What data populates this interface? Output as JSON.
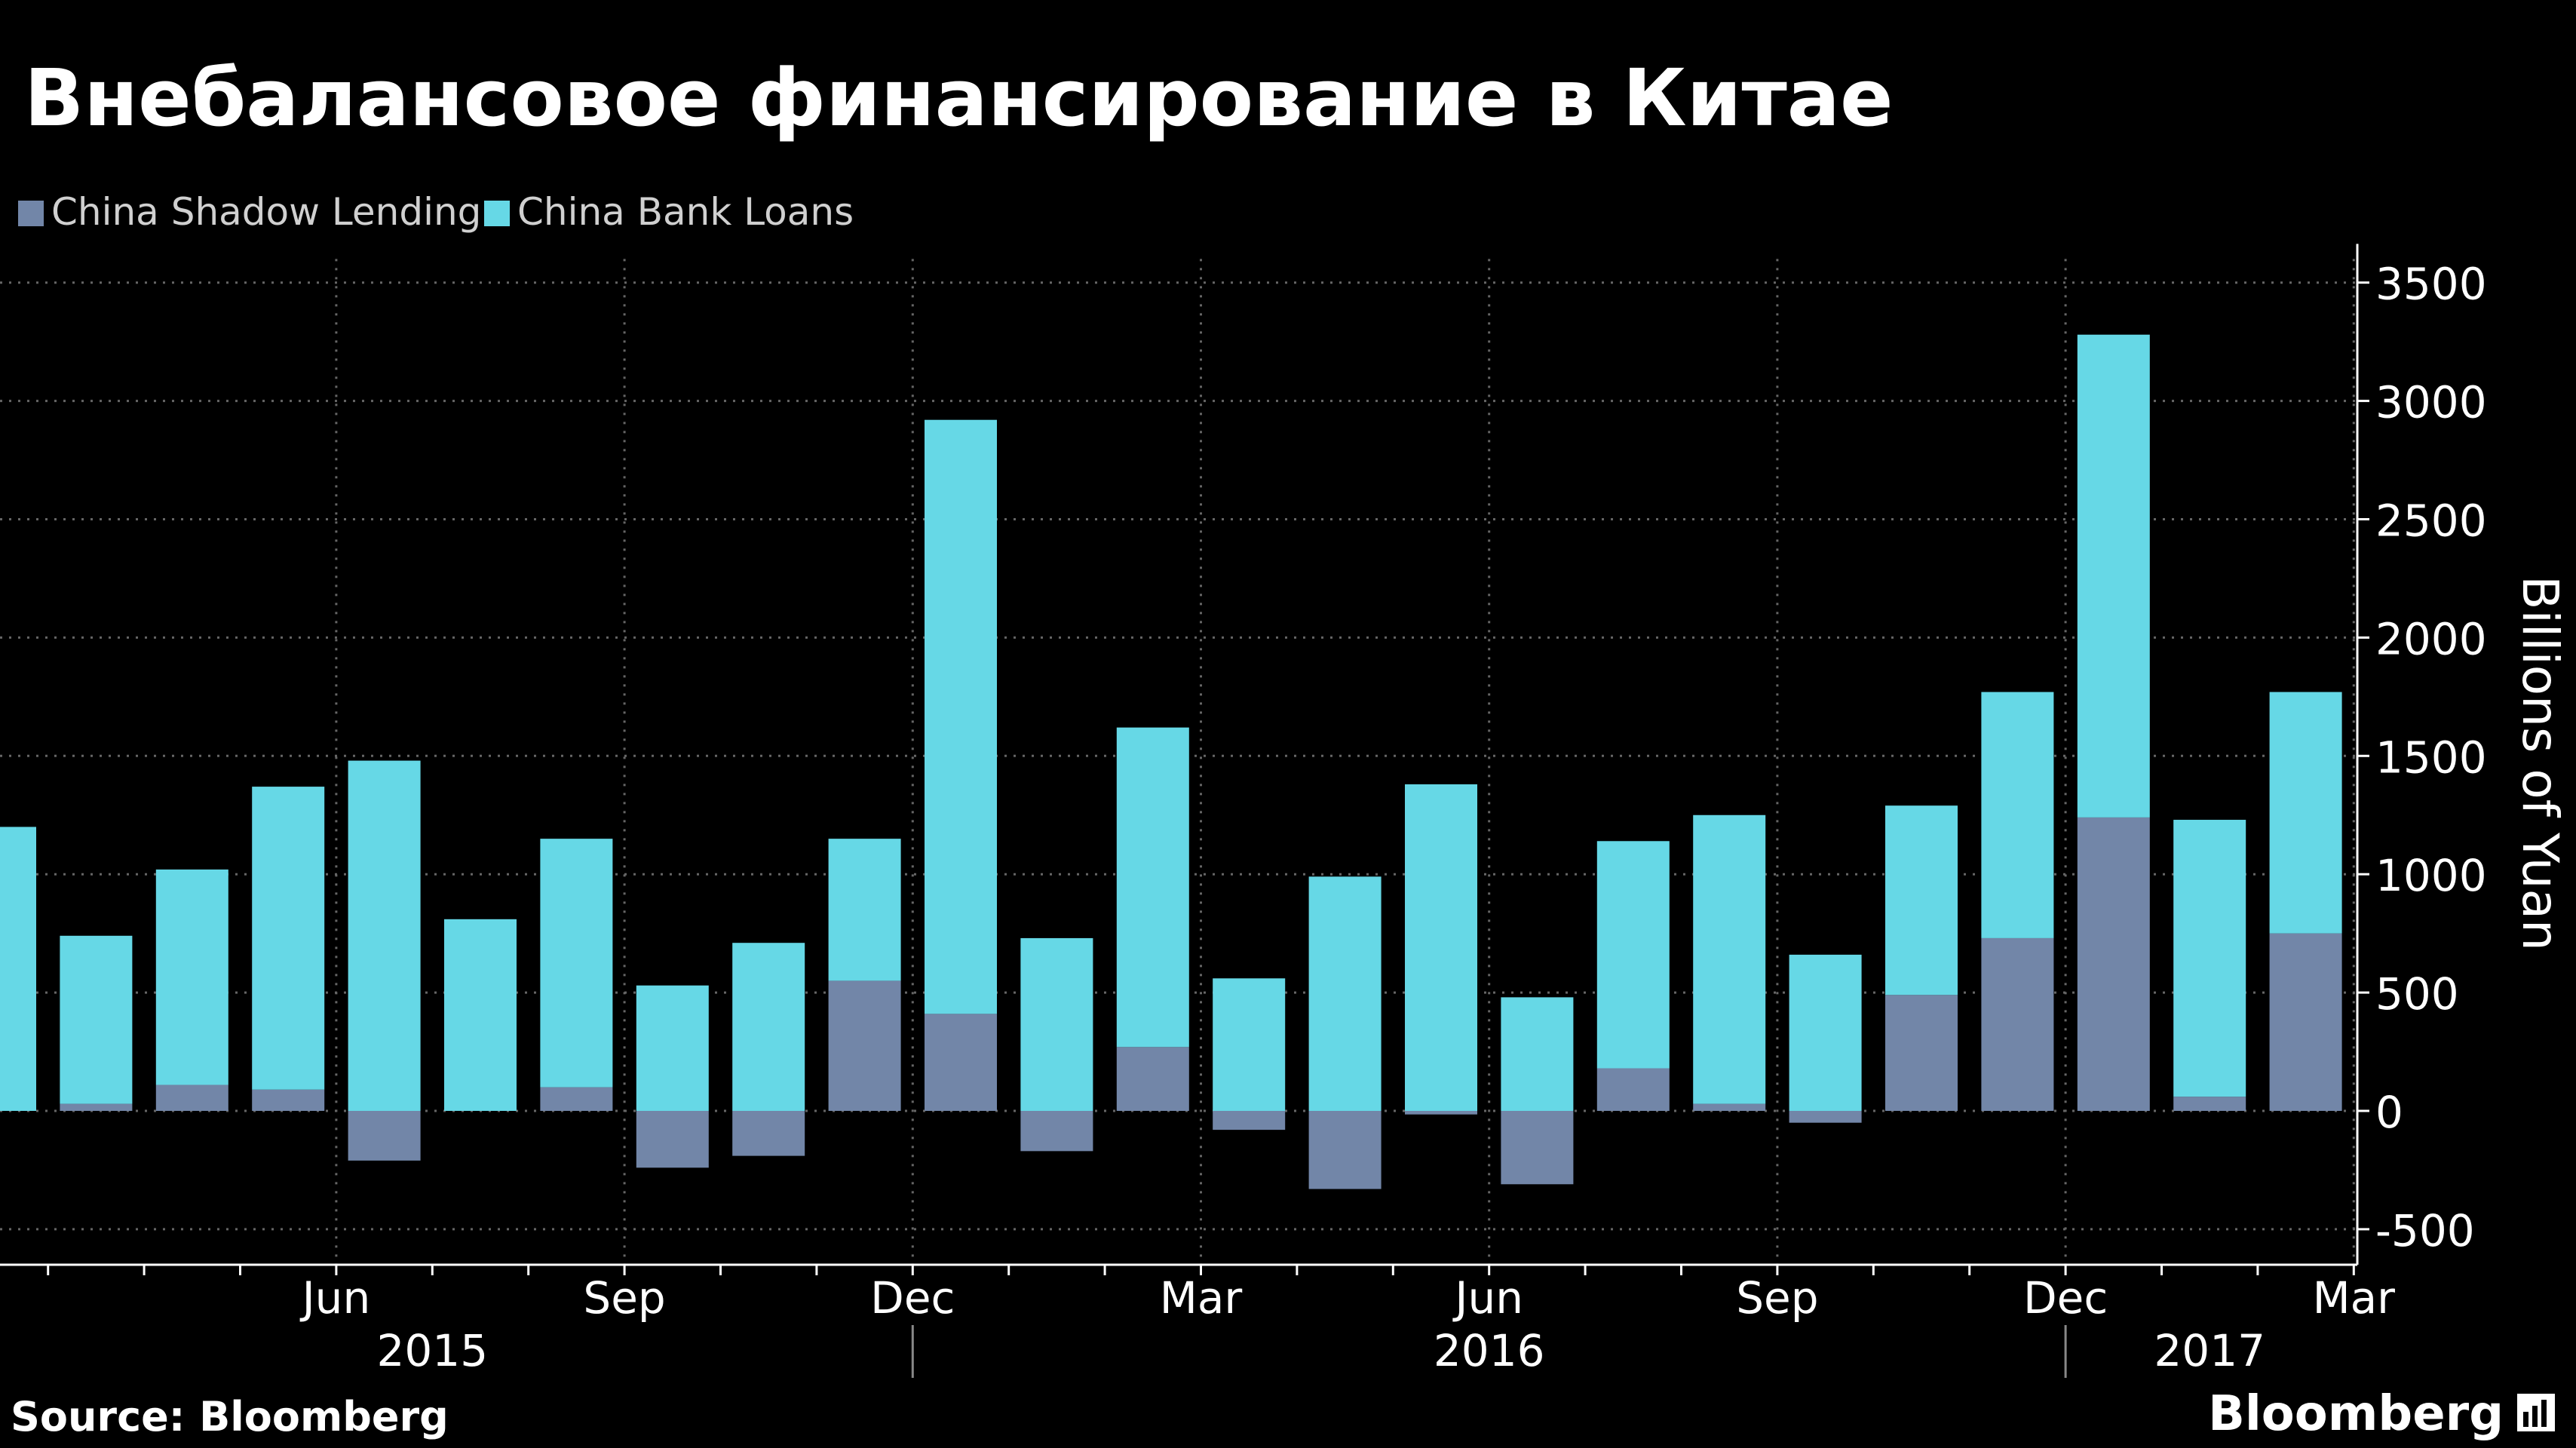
{
  "title": "Внебалансовое финансирование в Китае",
  "source": "Source: Bloomberg",
  "logo": "Bloomberg",
  "colors": {
    "shadow": "#7286A8",
    "bank": "#66D8E6",
    "background": "#000000",
    "grid": "#666666",
    "axis": "#FFFFFF"
  },
  "chart_data": {
    "type": "bar",
    "stacked": true,
    "ylabel": "Billions of Yuan",
    "ylim": [
      -650,
      3600
    ],
    "yticks": [
      -500,
      0,
      500,
      1000,
      1500,
      2000,
      2500,
      3000,
      3500
    ],
    "grid": true,
    "legend": "top-left",
    "yaxis_position": "right",
    "categories": [
      "2015-03",
      "2015-04",
      "2015-05",
      "2015-06",
      "2015-07",
      "2015-08",
      "2015-09",
      "2015-10",
      "2015-11",
      "2015-12",
      "2016-01",
      "2016-02",
      "2016-03",
      "2016-04",
      "2016-05",
      "2016-06",
      "2016-07",
      "2016-08",
      "2016-09",
      "2016-10",
      "2016-11",
      "2016-12",
      "2017-01",
      "2017-02",
      "2017-03"
    ],
    "x_tick_labels": [
      {
        "category": "2015-06",
        "label": "Jun"
      },
      {
        "category": "2015-09",
        "label": "Sep"
      },
      {
        "category": "2015-12",
        "label": "Dec"
      },
      {
        "category": "2016-03",
        "label": "Mar"
      },
      {
        "category": "2016-06",
        "label": "Jun"
      },
      {
        "category": "2016-09",
        "label": "Sep"
      },
      {
        "category": "2016-12",
        "label": "Dec"
      },
      {
        "category": "2017-03",
        "label": "Mar"
      }
    ],
    "year_labels": [
      "2015",
      "2016",
      "2017"
    ],
    "series": [
      {
        "name": "China Shadow Lending",
        "values": [
          0,
          30,
          110,
          90,
          -210,
          0,
          100,
          -240,
          -190,
          550,
          410,
          -170,
          270,
          -80,
          -330,
          -15,
          -310,
          180,
          30,
          -50,
          490,
          730,
          1240,
          60,
          750
        ]
      },
      {
        "name": "China Bank Loans",
        "values": [
          1200,
          710,
          910,
          1280,
          1480,
          810,
          1050,
          530,
          710,
          600,
          2510,
          730,
          1350,
          560,
          990,
          1380,
          480,
          960,
          1220,
          660,
          800,
          1040,
          2040,
          1170,
          1020
        ]
      }
    ]
  }
}
